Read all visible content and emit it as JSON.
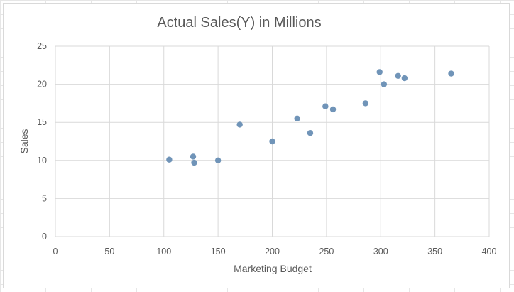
{
  "chart_data": {
    "type": "scatter",
    "title": "Actual Sales(Y) in Millions",
    "xlabel": "Marketing Budget",
    "ylabel": "Sales",
    "xlim": [
      0,
      400
    ],
    "ylim": [
      0,
      25
    ],
    "xticks": [
      "0",
      "50",
      "100",
      "150",
      "200",
      "250",
      "300",
      "350",
      "400"
    ],
    "yticks": [
      "0",
      "5",
      "10",
      "15",
      "20",
      "25"
    ],
    "grid": true,
    "marker_color": "#7094b8",
    "points": [
      {
        "x": 105,
        "y": 10.1
      },
      {
        "x": 127,
        "y": 10.5
      },
      {
        "x": 128,
        "y": 9.7
      },
      {
        "x": 150,
        "y": 10.0
      },
      {
        "x": 170,
        "y": 14.7
      },
      {
        "x": 200,
        "y": 12.5
      },
      {
        "x": 223,
        "y": 15.5
      },
      {
        "x": 235,
        "y": 13.6
      },
      {
        "x": 249,
        "y": 17.1
      },
      {
        "x": 256,
        "y": 16.7
      },
      {
        "x": 286,
        "y": 17.5
      },
      {
        "x": 299,
        "y": 21.6
      },
      {
        "x": 303,
        "y": 20.0
      },
      {
        "x": 316,
        "y": 21.1
      },
      {
        "x": 322,
        "y": 20.8
      },
      {
        "x": 365,
        "y": 21.4
      }
    ]
  }
}
